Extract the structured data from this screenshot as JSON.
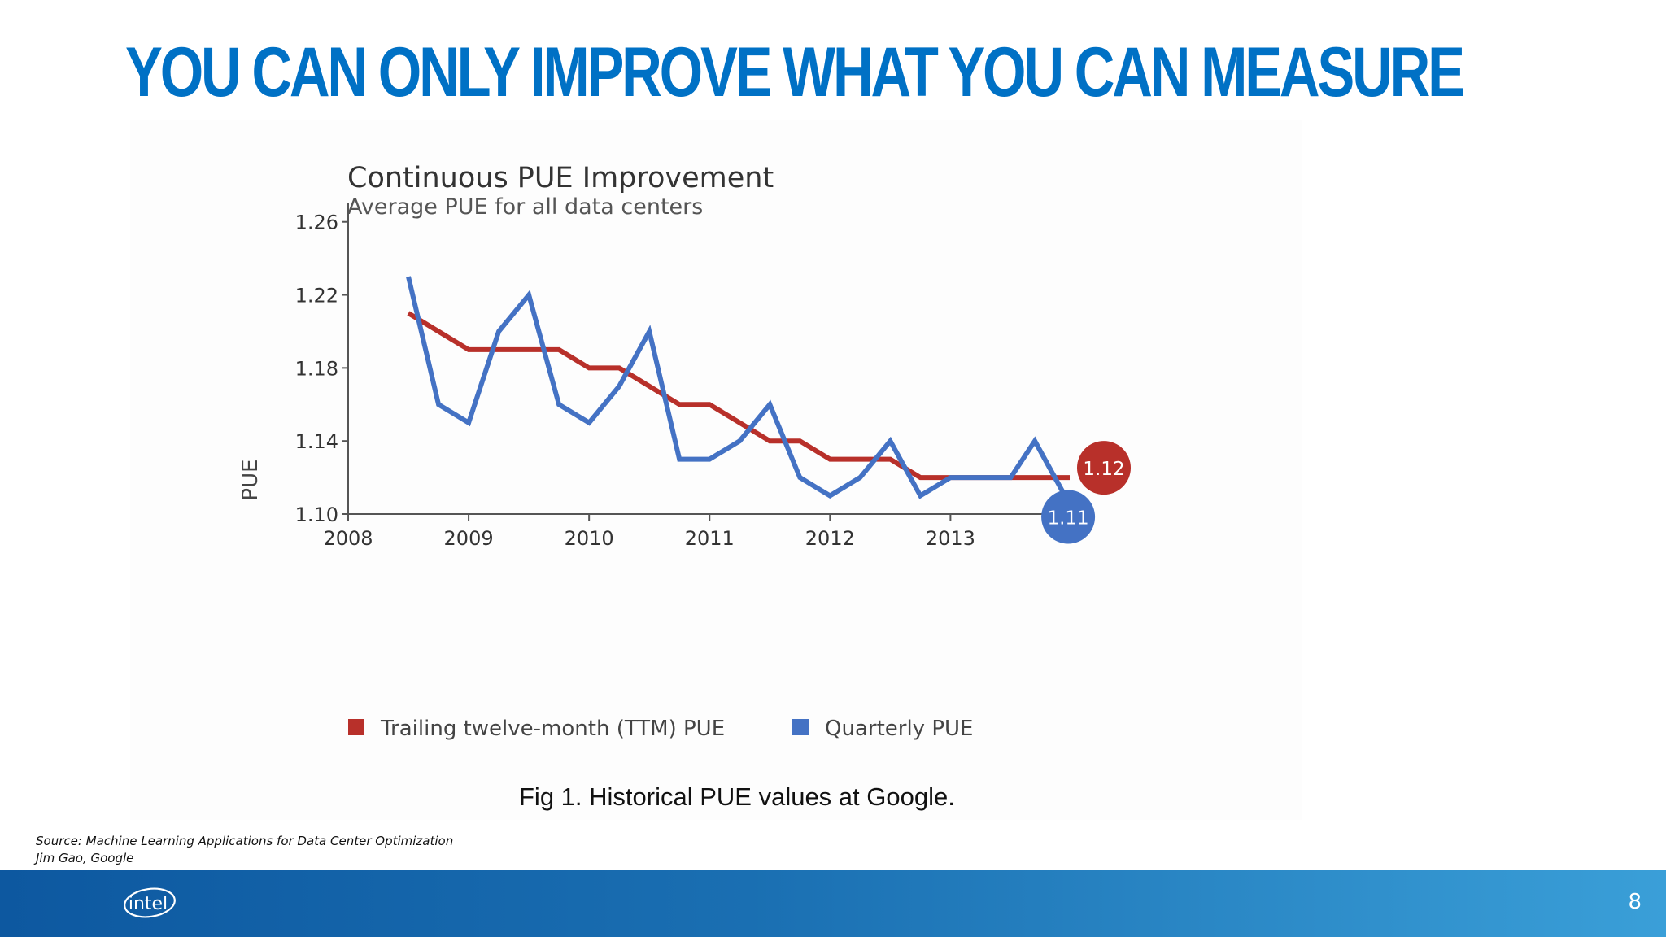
{
  "slide": {
    "title": "YOU CAN ONLY IMPROVE WHAT YOU CAN MEASURE",
    "source_line1": "Source: Machine Learning Applications for Data Center Optimization",
    "source_line2": "Jim Gao, Google",
    "page_number": "8",
    "logo_text": "intel",
    "caption": "Fig 1.  Historical PUE values at Google."
  },
  "colors": {
    "title": "#0071c5",
    "ttm": "#b8302a",
    "quarterly": "#4472c4",
    "axis": "#555555"
  },
  "chart_data": {
    "type": "line",
    "title": "Continuous PUE Improvement",
    "subtitle": "Average PUE for all data centers",
    "xlabel": "",
    "ylabel": "PUE",
    "xlim": [
      2008,
      2013.99
    ],
    "ylim": [
      1.1,
      1.263
    ],
    "x_ticks": [
      2008,
      2009,
      2010,
      2011,
      2012,
      2013
    ],
    "y_ticks": [
      1.1,
      1.14,
      1.18,
      1.22,
      1.26
    ],
    "y_tick_labels": [
      "1.10",
      "1.14",
      "1.18",
      "1.22",
      "1.26"
    ],
    "grid": false,
    "legend": "bottom",
    "series": [
      {
        "name": "Trailing twelve-month (TTM) PUE",
        "color": "#b8302a",
        "x": [
          2008.5,
          2008.75,
          2009.0,
          2009.25,
          2009.5,
          2009.75,
          2010.0,
          2010.25,
          2010.5,
          2010.75,
          2011.0,
          2011.25,
          2011.5,
          2011.75,
          2012.0,
          2012.25,
          2012.5,
          2012.75,
          2013.0,
          2013.25,
          2013.5,
          2013.75,
          2013.99
        ],
        "y": [
          1.21,
          1.2,
          1.19,
          1.19,
          1.19,
          1.19,
          1.18,
          1.18,
          1.17,
          1.16,
          1.16,
          1.15,
          1.14,
          1.14,
          1.13,
          1.13,
          1.13,
          1.12,
          1.12,
          1.12,
          1.12,
          1.12,
          1.12
        ],
        "end_label": "1.12"
      },
      {
        "name": "Quarterly PUE",
        "color": "#4472c4",
        "x": [
          2008.5,
          2008.75,
          2009.0,
          2009.25,
          2009.5,
          2009.75,
          2010.0,
          2010.25,
          2010.5,
          2010.75,
          2011.0,
          2011.25,
          2011.5,
          2011.75,
          2012.0,
          2012.25,
          2012.5,
          2012.75,
          2013.0,
          2013.25,
          2013.5,
          2013.7,
          2013.95
        ],
        "y": [
          1.23,
          1.16,
          1.15,
          1.2,
          1.22,
          1.16,
          1.15,
          1.17,
          1.2,
          1.13,
          1.13,
          1.14,
          1.16,
          1.12,
          1.11,
          1.12,
          1.14,
          1.11,
          1.12,
          1.12,
          1.12,
          1.14,
          1.11
        ],
        "end_label": "1.11"
      }
    ]
  }
}
